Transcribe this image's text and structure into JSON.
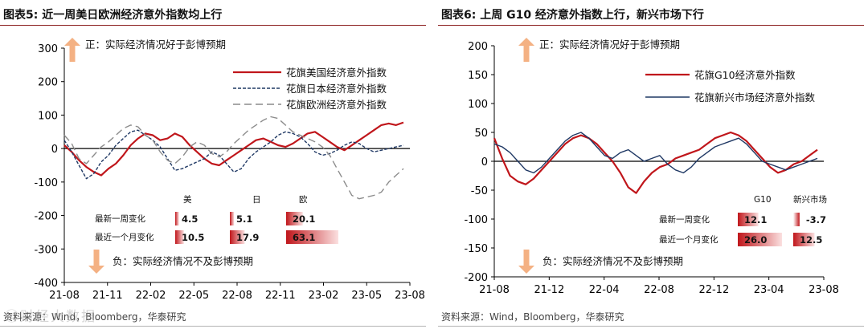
{
  "charts": [
    {
      "title": "图表5:  近一周美日欧洲经济意外指数均上行",
      "source": "资料来源：Wind，Bloomberg，华泰研究",
      "chart_data": {
        "type": "line",
        "x_ticks": [
          "21-08",
          "21-11",
          "22-02",
          "22-05",
          "22-08",
          "22-11",
          "23-02",
          "23-05",
          "23-08"
        ],
        "ylim": [
          -400,
          300
        ],
        "y_ticks": [
          300,
          200,
          100,
          0,
          -100,
          -200,
          -300,
          -400
        ],
        "series": [
          {
            "name": "花旗美国经济意外指数",
            "color": "#c0161b",
            "style": "solid",
            "values": [
              10,
              -10,
              -35,
              -55,
              -70,
              -80,
              -60,
              -45,
              -20,
              10,
              30,
              45,
              40,
              25,
              30,
              45,
              35,
              10,
              -10,
              -30,
              -45,
              -50,
              -35,
              -20,
              -5,
              10,
              25,
              30,
              20,
              10,
              5,
              15,
              30,
              45,
              50,
              35,
              20,
              5,
              -5,
              10,
              25,
              40,
              55,
              70,
              75,
              70,
              78
            ]
          },
          {
            "name": "花旗日本经济意外指数",
            "color": "#1f3864",
            "style": "dash",
            "values": [
              25,
              -10,
              -50,
              -90,
              -75,
              -40,
              -20,
              10,
              30,
              50,
              55,
              40,
              25,
              5,
              -30,
              -65,
              -60,
              -50,
              -40,
              -30,
              -10,
              -20,
              -45,
              -70,
              -60,
              -30,
              -10,
              5,
              20,
              40,
              50,
              45,
              35,
              15,
              -10,
              -20,
              -15,
              -5,
              10,
              20,
              15,
              0,
              -10,
              -5,
              0,
              5,
              10
            ]
          },
          {
            "name": "花旗欧洲经济意外指数",
            "color": "#8c8c8c",
            "style": "longdash",
            "values": [
              40,
              15,
              -30,
              -45,
              -20,
              5,
              20,
              40,
              60,
              70,
              65,
              40,
              25,
              -10,
              -35,
              -45,
              -25,
              5,
              20,
              10,
              -15,
              -25,
              -10,
              15,
              35,
              55,
              70,
              85,
              95,
              90,
              70,
              50,
              40,
              30,
              20,
              5,
              -20,
              -60,
              -100,
              -140,
              -150,
              -145,
              -140,
              -130,
              -100,
              -80,
              -60
            ]
          }
        ],
        "annotations": {
          "pos_label": "正：实际经济情况好于彭博预期",
          "neg_label": "负：实际经济情况不及彭博预期"
        },
        "change_table": {
          "columns": [
            "美",
            "日",
            "欧"
          ],
          "rows": [
            {
              "label": "最新一周变化",
              "values": [
                4.5,
                5.1,
                20.1
              ],
              "texts": [
                "4.5",
                "5.1",
                "20.1"
              ]
            },
            {
              "label": "最近一个月变化",
              "values": [
                10.5,
                17.9,
                63.1
              ],
              "texts": [
                "10.5",
                "17.9",
                "63.1"
              ]
            }
          ]
        }
      }
    },
    {
      "title": "图表6:  上周 G10 经济意外指数上行，新兴市场下行",
      "source": "资料来源：Wind，Bloomberg，华泰研究",
      "chart_data": {
        "type": "line",
        "x_ticks": [
          "21-08",
          "21-12",
          "22-04",
          "22-08",
          "22-12",
          "23-04",
          "23-08"
        ],
        "ylim": [
          -200,
          200
        ],
        "y_ticks": [
          200,
          150,
          100,
          50,
          0,
          -50,
          -100,
          -150,
          -200
        ],
        "series": [
          {
            "name": "花旗G10经济意外指数",
            "color": "#c0161b",
            "style": "solid",
            "values": [
              40,
              5,
              -25,
              -35,
              -40,
              -30,
              -15,
              0,
              15,
              30,
              40,
              45,
              40,
              30,
              15,
              0,
              -20,
              -45,
              -55,
              -35,
              -20,
              -10,
              -5,
              5,
              10,
              15,
              20,
              30,
              40,
              45,
              50,
              45,
              35,
              20,
              5,
              -10,
              -20,
              -15,
              -5,
              0,
              10,
              20
            ]
          },
          {
            "name": "花旗新兴市场经济意外指数",
            "color": "#1f3864",
            "style": "solid",
            "values": [
              30,
              25,
              15,
              0,
              -15,
              -20,
              -10,
              5,
              20,
              35,
              45,
              50,
              40,
              25,
              10,
              5,
              15,
              20,
              10,
              0,
              5,
              10,
              -5,
              -15,
              -20,
              -10,
              5,
              15,
              25,
              30,
              35,
              40,
              30,
              15,
              0,
              -5,
              -10,
              -15,
              -10,
              -5,
              0,
              5
            ]
          }
        ],
        "annotations": {
          "pos_label": "正：实际经济情况好于彭博预期",
          "neg_label": "负：实际经济情况不及彭博预期"
        },
        "change_table": {
          "columns": [
            "G10",
            "新兴市场"
          ],
          "rows": [
            {
              "label": "最新一周变化",
              "values": [
                12.1,
                -3.7
              ],
              "texts": [
                "12.1",
                "-3.7"
              ]
            },
            {
              "label": "最近一个月变化",
              "values": [
                26.0,
                12.5
              ],
              "texts": [
                "26.0",
                "12.5"
              ]
            }
          ]
        }
      }
    }
  ],
  "watermark": "ⓒ财经大数据"
}
